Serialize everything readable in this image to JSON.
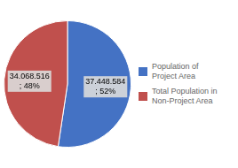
{
  "chart_data": {
    "type": "pie",
    "categories": [
      "Population of\nProject Area",
      "Total Population in\nNon-Project Area"
    ],
    "values": [
      37448584,
      34068516
    ],
    "value_labels": [
      "37.448.584\n; 52%",
      "34.068.516\n; 48%"
    ],
    "colors": [
      "#4472C4",
      "#C0504D"
    ],
    "data_labels": true,
    "legend": "right"
  }
}
